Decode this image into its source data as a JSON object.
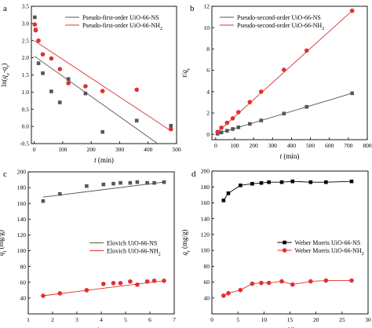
{
  "chart_data": [
    {
      "panel": "a",
      "type": "scatter",
      "xlabel": "t (min)",
      "ylabel": "ln(qe-qt)",
      "xlim": [
        -10,
        500
      ],
      "ylim": [
        -0.5,
        3.5
      ],
      "xticks": [
        0,
        100,
        200,
        300,
        400,
        500
      ],
      "yticks": [
        -0.5,
        0.0,
        0.5,
        1.0,
        1.5,
        2.0,
        2.5,
        3.0,
        3.5
      ],
      "legend_position": "top-right",
      "series": [
        {
          "name": "Pseudo-first-order UiO-66-NS",
          "color": "#555555",
          "marker": "square",
          "x": [
            2,
            5,
            15,
            30,
            60,
            90,
            120,
            180,
            240,
            360,
            480
          ],
          "y": [
            3.18,
            2.82,
            1.84,
            1.55,
            1.02,
            0.7,
            1.38,
            0.96,
            -0.16,
            0.17,
            0.02
          ],
          "fit": {
            "x": [
              0,
              430
            ],
            "y": [
              2.05,
              -0.48
            ]
          }
        },
        {
          "name": "Pseudo-first-order UiO-66-NH2",
          "color": "#e03030",
          "marker": "circle",
          "x": [
            2,
            5,
            15,
            30,
            60,
            90,
            120,
            180,
            240,
            360,
            480
          ],
          "y": [
            2.97,
            2.8,
            2.5,
            2.1,
            1.98,
            1.67,
            1.26,
            1.17,
            1.03,
            1.07,
            -0.08
          ],
          "fit": {
            "x": [
              0,
              475
            ],
            "y": [
              2.5,
              -0.1
            ]
          }
        }
      ]
    },
    {
      "panel": "b",
      "type": "scatter",
      "xlabel": "t (min)",
      "ylabel": "t/qt",
      "xlim": [
        -20,
        800
      ],
      "ylim": [
        -0.5,
        12
      ],
      "xticks": [
        0,
        100,
        200,
        300,
        400,
        500,
        600,
        700,
        800
      ],
      "yticks": [
        0,
        2,
        4,
        6,
        8,
        10,
        12
      ],
      "legend_position": "top-left",
      "series": [
        {
          "name": "Pseudo-second-order UiO-66-NS",
          "color": "#555555",
          "marker": "square",
          "x": [
            10,
            30,
            60,
            90,
            120,
            180,
            240,
            360,
            480,
            720
          ],
          "y": [
            0.06,
            0.18,
            0.34,
            0.5,
            0.66,
            0.98,
            1.3,
            1.95,
            2.58,
            3.85
          ],
          "fit": {
            "x": [
              0,
              720
            ],
            "y": [
              0.02,
              3.85
            ]
          }
        },
        {
          "name": "Pseudo-second-order UiO-66-NH2",
          "color": "#e03030",
          "marker": "circle",
          "x": [
            10,
            30,
            60,
            90,
            120,
            180,
            240,
            360,
            480,
            720
          ],
          "y": [
            0.23,
            0.62,
            1.08,
            1.5,
            2.08,
            3.02,
            4.0,
            6.05,
            7.85,
            11.58
          ],
          "fit": {
            "x": [
              0,
              720
            ],
            "y": [
              0.05,
              11.58
            ]
          }
        }
      ]
    },
    {
      "panel": "c",
      "type": "scatter",
      "xlabel": "lnt",
      "ylabel": "qt (mg/g)",
      "xlim": [
        1,
        7
      ],
      "ylim": [
        20,
        200
      ],
      "xticks": [
        1,
        2,
        3,
        4,
        5,
        6,
        7
      ],
      "yticks": [
        40,
        60,
        80,
        100,
        120,
        140,
        160,
        180,
        200
      ],
      "legend_position": "right",
      "series": [
        {
          "name": "Elovich UiO-66-NS",
          "color": "#555555",
          "marker": "square",
          "x": [
            1.61,
            2.3,
            3.4,
            4.09,
            4.5,
            4.79,
            5.19,
            5.48,
            5.89,
            6.18,
            6.58
          ],
          "y": [
            163,
            172,
            182,
            184,
            185,
            186,
            186,
            187,
            186,
            186,
            187
          ],
          "fit": {
            "x": [
              1.61,
              6.58
            ],
            "y": [
              168,
              187
            ]
          }
        },
        {
          "name": "Elovich UiO-66-NH2",
          "color": "#e03030",
          "marker": "circle",
          "x": [
            1.61,
            2.3,
            3.4,
            4.09,
            4.5,
            4.79,
            5.19,
            5.48,
            5.89,
            6.18,
            6.58
          ],
          "y": [
            43,
            46,
            50,
            58,
            59,
            59,
            61,
            57,
            61,
            62,
            62
          ],
          "fit": {
            "x": [
              1.61,
              6.58
            ],
            "y": [
              43,
              62
            ]
          }
        }
      ]
    },
    {
      "panel": "d",
      "type": "line",
      "xlabel": "t1/2",
      "ylabel": "qt (mg/g)",
      "xlim": [
        0,
        30
      ],
      "ylim": [
        20,
        200
      ],
      "xticks": [
        0,
        5,
        10,
        15,
        20,
        25,
        30
      ],
      "yticks": [
        40,
        60,
        80,
        100,
        120,
        140,
        160,
        180,
        200
      ],
      "legend_position": "right",
      "series": [
        {
          "name": "Weber Morris UiO-66-NS",
          "color": "#000000",
          "marker": "square",
          "x": [
            2.24,
            3.16,
            5.48,
            7.75,
            9.49,
            10.95,
            13.42,
            15.49,
            18.97,
            21.91,
            26.83
          ],
          "y": [
            163,
            172,
            182,
            184,
            185,
            186,
            186,
            187,
            186,
            186,
            187
          ]
        },
        {
          "name": "Weber Morris UiO-66-NH2",
          "color": "#e03030",
          "marker": "circle",
          "x": [
            2.24,
            3.16,
            5.48,
            7.75,
            9.49,
            10.95,
            13.42,
            15.49,
            18.97,
            21.91,
            26.83
          ],
          "y": [
            43,
            46,
            50,
            58,
            59,
            59,
            61,
            57,
            61,
            62,
            62
          ]
        }
      ]
    }
  ]
}
